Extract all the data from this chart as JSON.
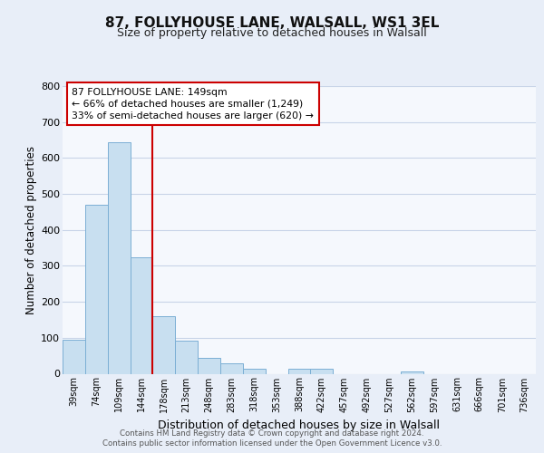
{
  "title": "87, FOLLYHOUSE LANE, WALSALL, WS1 3EL",
  "subtitle": "Size of property relative to detached houses in Walsall",
  "xlabel": "Distribution of detached houses by size in Walsall",
  "ylabel": "Number of detached properties",
  "bin_labels": [
    "39sqm",
    "74sqm",
    "109sqm",
    "144sqm",
    "178sqm",
    "213sqm",
    "248sqm",
    "283sqm",
    "318sqm",
    "353sqm",
    "388sqm",
    "422sqm",
    "457sqm",
    "492sqm",
    "527sqm",
    "562sqm",
    "597sqm",
    "631sqm",
    "666sqm",
    "701sqm",
    "736sqm"
  ],
  "bar_heights": [
    95,
    470,
    645,
    325,
    160,
    92,
    43,
    28,
    15,
    0,
    15,
    13,
    0,
    0,
    0,
    7,
    0,
    0,
    0,
    0,
    0
  ],
  "bar_color": "#c8dff0",
  "bar_edge_color": "#7bafd4",
  "vline_color": "#cc0000",
  "annotation_text": "87 FOLLYHOUSE LANE: 149sqm\n← 66% of detached houses are smaller (1,249)\n33% of semi-detached houses are larger (620) →",
  "annotation_box_color": "white",
  "annotation_box_edge": "#cc0000",
  "ylim": [
    0,
    800
  ],
  "yticks": [
    0,
    100,
    200,
    300,
    400,
    500,
    600,
    700,
    800
  ],
  "footer_text": "Contains HM Land Registry data © Crown copyright and database right 2024.\nContains public sector information licensed under the Open Government Licence v3.0.",
  "bg_color": "#e8eef8",
  "plot_bg_color": "#f5f8fd",
  "grid_color": "#c8d4e8"
}
